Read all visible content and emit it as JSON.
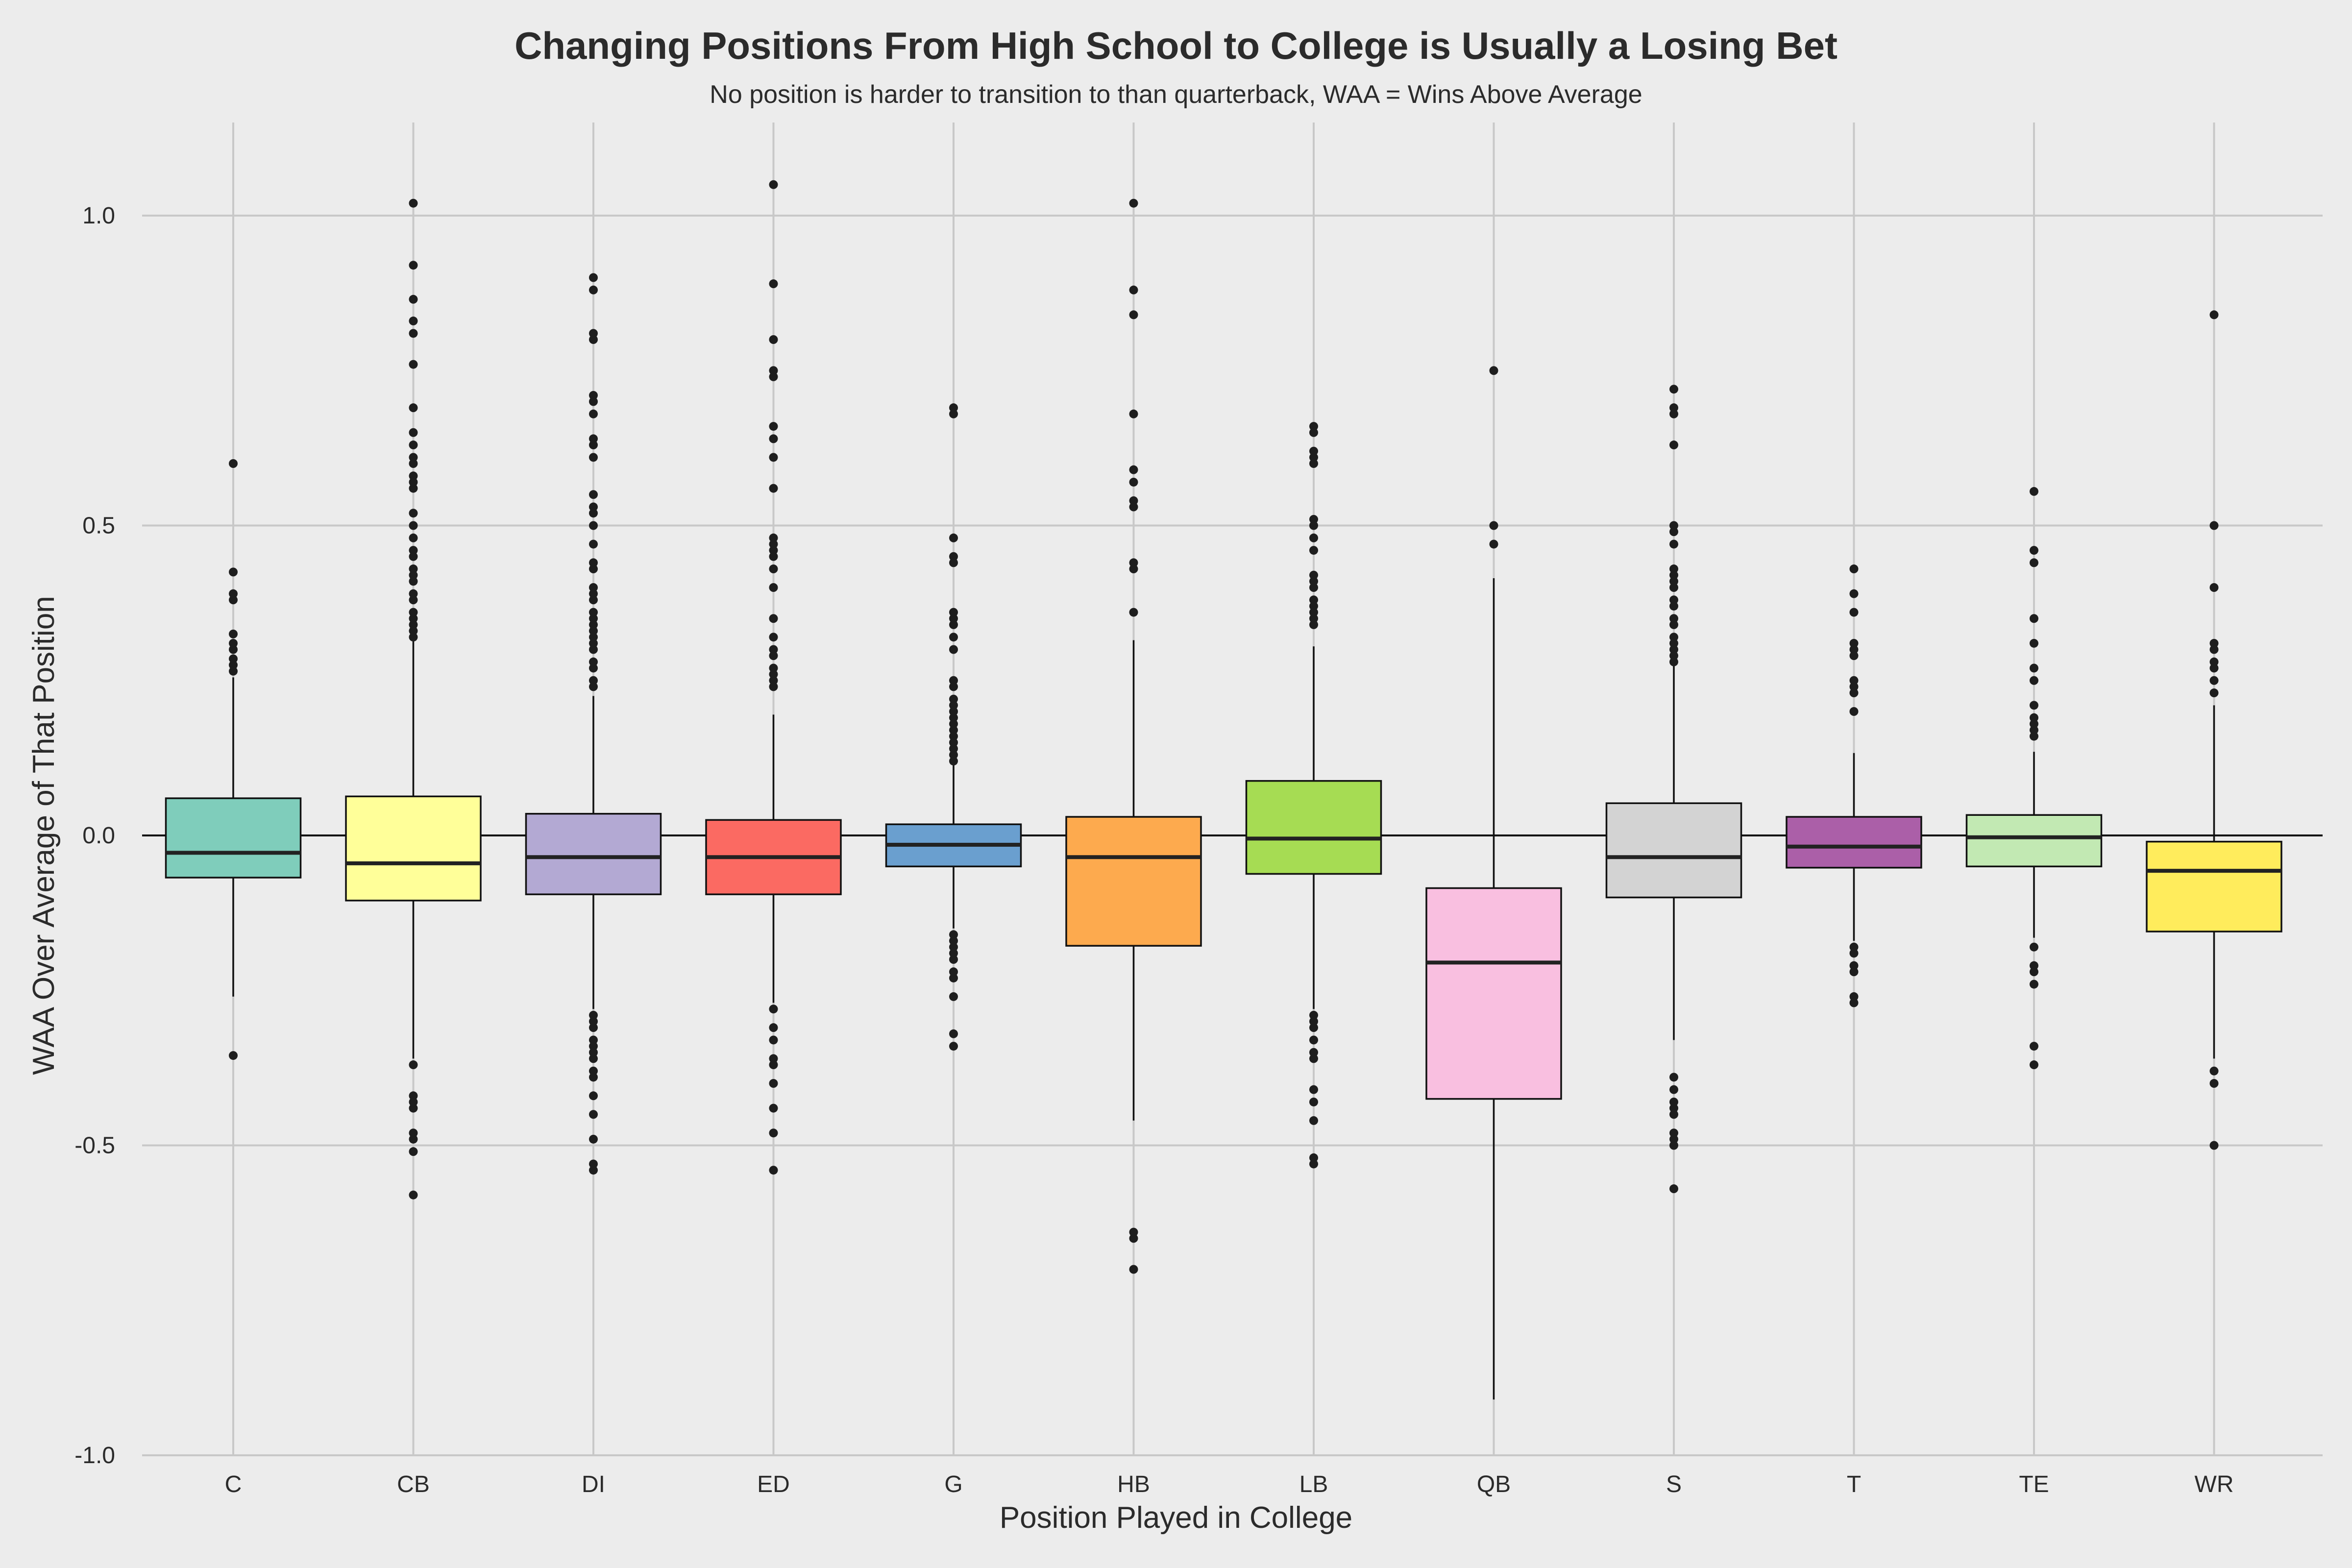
{
  "chart_data": {
    "type": "box",
    "title": "Changing Positions From High School to College is Usually a Losing Bet",
    "subtitle": "No position is harder to transition to than quarterback, WAA = Wins Above Average",
    "xlabel": "Position Played in College",
    "ylabel": "WAA Over Average of That Position",
    "ylim": [
      -1.0,
      1.15
    ],
    "yticks": [
      -1.0,
      -0.5,
      0.0,
      0.5,
      1.0
    ],
    "ytick_labels": [
      "-1.0",
      "-0.5",
      "0.0",
      "0.5",
      "1.0"
    ],
    "grid": true,
    "reference_line": 0.0,
    "legend": "none",
    "categories": [
      "C",
      "CB",
      "DI",
      "ED",
      "G",
      "HB",
      "LB",
      "QB",
      "S",
      "T",
      "TE",
      "WR"
    ],
    "colors": [
      "#7fcdbb",
      "#ffff99",
      "#b3a9d3",
      "#fb6a62",
      "#6a9fcf",
      "#fdaa4e",
      "#a6dc53",
      "#f9bfe0",
      "#d3d3d3",
      "#ab5fa8",
      "#c2e9b3",
      "#ffec5c"
    ],
    "boxes": [
      {
        "category": "C",
        "whislo": -0.26,
        "q1": -0.068,
        "median": -0.028,
        "q3": 0.06,
        "whishi": 0.255,
        "outliers": [
          0.6,
          0.425,
          0.39,
          0.38,
          0.325,
          0.31,
          0.3,
          0.285,
          0.275,
          0.265,
          -0.355
        ]
      },
      {
        "category": "CB",
        "whislo": -0.36,
        "q1": -0.105,
        "median": -0.045,
        "q3": 0.063,
        "whishi": 0.315,
        "outliers": [
          1.02,
          0.92,
          0.865,
          0.83,
          0.81,
          0.76,
          0.69,
          0.65,
          0.63,
          0.61,
          0.6,
          0.58,
          0.57,
          0.56,
          0.52,
          0.5,
          0.48,
          0.46,
          0.45,
          0.43,
          0.42,
          0.41,
          0.39,
          0.38,
          0.36,
          0.35,
          0.34,
          0.33,
          0.32,
          -0.37,
          -0.42,
          -0.43,
          -0.44,
          -0.48,
          -0.49,
          -0.51,
          -0.58
        ]
      },
      {
        "category": "DI",
        "whislo": -0.28,
        "q1": -0.095,
        "median": -0.035,
        "q3": 0.035,
        "whishi": 0.225,
        "outliers": [
          0.9,
          0.88,
          0.81,
          0.8,
          0.71,
          0.7,
          0.68,
          0.64,
          0.63,
          0.61,
          0.55,
          0.53,
          0.52,
          0.5,
          0.47,
          0.44,
          0.43,
          0.4,
          0.39,
          0.38,
          0.36,
          0.35,
          0.34,
          0.33,
          0.32,
          0.31,
          0.3,
          0.28,
          0.27,
          0.25,
          0.24,
          -0.29,
          -0.3,
          -0.31,
          -0.33,
          -0.34,
          -0.35,
          -0.36,
          -0.38,
          -0.39,
          -0.42,
          -0.45,
          -0.49,
          -0.53,
          -0.54
        ]
      },
      {
        "category": "ED",
        "whislo": -0.27,
        "q1": -0.095,
        "median": -0.035,
        "q3": 0.025,
        "whishi": 0.195,
        "outliers": [
          1.05,
          0.89,
          0.8,
          0.75,
          0.74,
          0.66,
          0.64,
          0.61,
          0.56,
          0.48,
          0.47,
          0.46,
          0.45,
          0.43,
          0.4,
          0.35,
          0.32,
          0.3,
          0.29,
          0.27,
          0.26,
          0.25,
          0.24,
          -0.28,
          -0.31,
          -0.33,
          -0.36,
          -0.37,
          -0.4,
          -0.44,
          -0.48,
          -0.54
        ]
      },
      {
        "category": "G",
        "whislo": -0.15,
        "q1": -0.05,
        "median": -0.015,
        "q3": 0.018,
        "whishi": 0.115,
        "outliers": [
          0.69,
          0.68,
          0.48,
          0.45,
          0.44,
          0.36,
          0.35,
          0.34,
          0.32,
          0.3,
          0.25,
          0.24,
          0.22,
          0.21,
          0.2,
          0.19,
          0.18,
          0.17,
          0.16,
          0.15,
          0.14,
          0.13,
          0.12,
          -0.16,
          -0.17,
          -0.18,
          -0.19,
          -0.2,
          -0.22,
          -0.23,
          -0.26,
          -0.32,
          -0.34
        ]
      },
      {
        "category": "HB",
        "whislo": -0.46,
        "q1": -0.178,
        "median": -0.035,
        "q3": 0.03,
        "whishi": 0.315,
        "outliers": [
          1.02,
          0.88,
          0.84,
          0.68,
          0.59,
          0.57,
          0.54,
          0.53,
          0.44,
          0.43,
          0.36,
          -0.64,
          -0.65,
          -0.7
        ]
      },
      {
        "category": "LB",
        "whislo": -0.28,
        "q1": -0.062,
        "median": -0.005,
        "q3": 0.088,
        "whishi": 0.305,
        "outliers": [
          0.66,
          0.65,
          0.62,
          0.61,
          0.6,
          0.51,
          0.5,
          0.48,
          0.46,
          0.42,
          0.41,
          0.4,
          0.38,
          0.37,
          0.36,
          0.35,
          0.34,
          -0.29,
          -0.3,
          -0.31,
          -0.33,
          -0.35,
          -0.36,
          -0.41,
          -0.43,
          -0.46,
          -0.52,
          -0.53
        ]
      },
      {
        "category": "QB",
        "whislo": -0.91,
        "q1": -0.425,
        "median": -0.205,
        "q3": -0.085,
        "whishi": 0.415,
        "outliers": [
          0.75,
          0.5,
          0.47
        ]
      },
      {
        "category": "S",
        "whislo": -0.33,
        "q1": -0.1,
        "median": -0.035,
        "q3": 0.052,
        "whishi": 0.275,
        "outliers": [
          0.72,
          0.69,
          0.68,
          0.63,
          0.5,
          0.49,
          0.47,
          0.43,
          0.42,
          0.41,
          0.4,
          0.38,
          0.37,
          0.35,
          0.34,
          0.32,
          0.31,
          0.3,
          0.29,
          0.28,
          -0.39,
          -0.41,
          -0.43,
          -0.44,
          -0.45,
          -0.48,
          -0.49,
          -0.5,
          -0.57
        ]
      },
      {
        "category": "T",
        "whislo": -0.17,
        "q1": -0.052,
        "median": -0.018,
        "q3": 0.03,
        "whishi": 0.133,
        "outliers": [
          0.43,
          0.39,
          0.36,
          0.31,
          0.3,
          0.29,
          0.25,
          0.24,
          0.23,
          0.2,
          -0.18,
          -0.19,
          -0.21,
          -0.22,
          -0.26,
          -0.27
        ]
      },
      {
        "category": "TE",
        "whislo": -0.165,
        "q1": -0.05,
        "median": -0.003,
        "q3": 0.033,
        "whishi": 0.135,
        "outliers": [
          0.555,
          0.46,
          0.44,
          0.35,
          0.31,
          0.27,
          0.25,
          0.21,
          0.19,
          0.18,
          0.17,
          0.16,
          -0.18,
          -0.21,
          -0.22,
          -0.24,
          -0.34,
          -0.37
        ]
      },
      {
        "category": "WR",
        "whislo": -0.36,
        "q1": -0.155,
        "median": -0.057,
        "q3": -0.01,
        "whishi": 0.21,
        "outliers": [
          0.84,
          0.5,
          0.4,
          0.31,
          0.3,
          0.28,
          0.27,
          0.25,
          0.23,
          -0.38,
          -0.4,
          -0.5
        ]
      }
    ]
  }
}
